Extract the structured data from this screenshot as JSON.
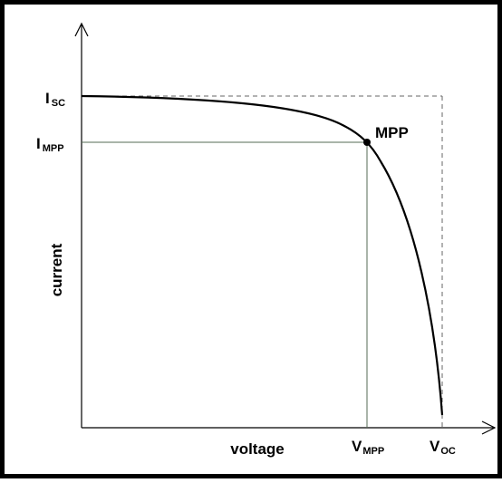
{
  "labels": {
    "isc": {
      "main": "I",
      "sub": "SC"
    },
    "impp": {
      "main": "I",
      "sub": "MPP"
    },
    "mpp": "MPP",
    "y_axis": "current",
    "x_axis": "voltage",
    "vmpp": {
      "main": "V",
      "sub": "MPP"
    },
    "voc": {
      "main": "V",
      "sub": "OC"
    }
  }
}
